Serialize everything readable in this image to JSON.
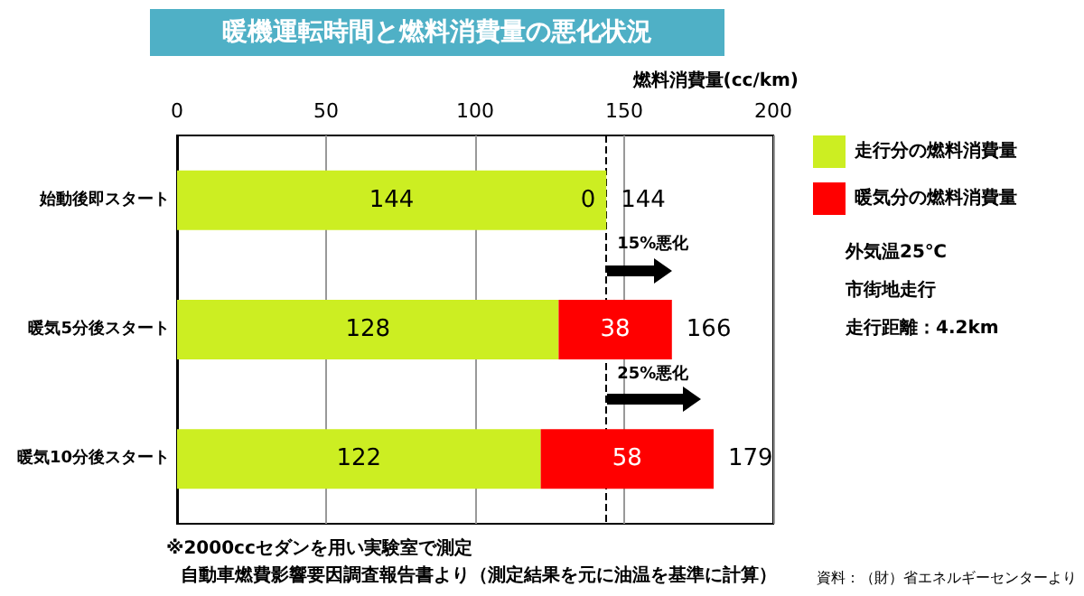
{
  "chart_data": {
    "type": "bar",
    "orientation": "horizontal",
    "stacked": true,
    "title": "暖機運転時間と燃料消費量の悪化状況",
    "xlabel": "燃料消費量(cc/km)",
    "categories": [
      "始動後即スタート",
      "暖気5分後スタート",
      "暖気10分後スタート"
    ],
    "series": [
      {
        "name": "走行分の燃料消費量",
        "color": "#ccee22",
        "values": [
          144,
          128,
          122
        ]
      },
      {
        "name": "暖気分の燃料消費量",
        "color": "#ff0000",
        "values": [
          0,
          38,
          58
        ]
      }
    ],
    "totals": [
      "144",
      "166",
      "179"
    ],
    "data_labels": true,
    "xlim": [
      0,
      200
    ],
    "xticks": [
      0,
      50,
      100,
      150,
      200
    ],
    "grid": "x",
    "legend": "right",
    "ref_lines": [
      {
        "axis": "x",
        "value": 144,
        "line_style": "dashed",
        "color": "#000000"
      }
    ],
    "annotations": [
      "15%悪化",
      "25%悪化",
      "外気温25℃",
      "市街地走行",
      "走行距離：4.2km",
      "※2000ccセダンを用い実験室で測定",
      "自動車燃費影響要因調査報告書より（測定結果を元に油温を基準に計算）",
      "資料：（財）省エネルギーセンターより"
    ]
  }
}
